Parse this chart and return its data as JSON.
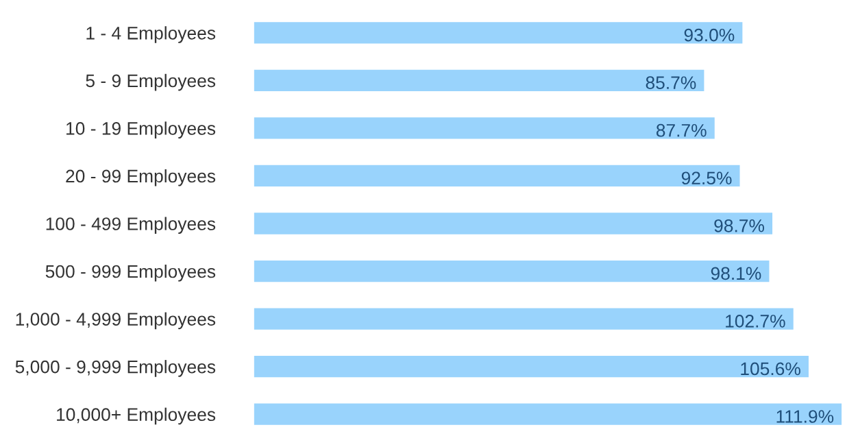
{
  "chart_data": {
    "type": "bar",
    "orientation": "horizontal",
    "categories": [
      "1 - 4 Employees",
      "5 - 9 Employees",
      "10 - 19 Employees",
      "20 - 99 Employees",
      "100 - 499 Employees",
      "500 - 999 Employees",
      "1,000 - 4,999 Employees",
      "5,000 - 9,999 Employees",
      "10,000+ Employees"
    ],
    "values": [
      93.0,
      85.7,
      87.7,
      92.5,
      98.7,
      98.1,
      102.7,
      105.6,
      111.9
    ],
    "value_labels": [
      "93.0%",
      "85.7%",
      "87.7%",
      "92.5%",
      "98.7%",
      "98.1%",
      "102.7%",
      "105.6%",
      "111.9%"
    ],
    "color": "#99d3fc",
    "grid": false,
    "legend": false,
    "tick_labels": "y"
  }
}
